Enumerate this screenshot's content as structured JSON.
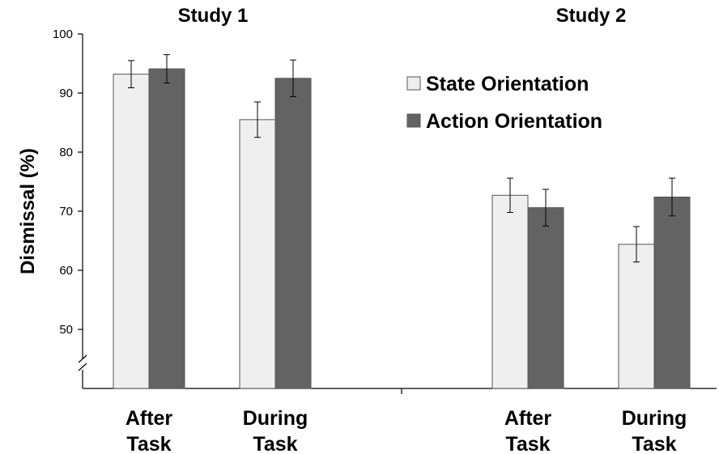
{
  "chart_data": {
    "type": "bar",
    "ylabel": "Dismissal (%)",
    "ylim": [
      40,
      100
    ],
    "yticks": [
      "50",
      "60",
      "70",
      "80",
      "90",
      "100"
    ],
    "axis_break": true,
    "grid": false,
    "legend_position": "top-right",
    "studies": [
      {
        "title": "Study 1",
        "categories": [
          [
            "After",
            "Task"
          ],
          [
            "During",
            "Task"
          ]
        ]
      },
      {
        "title": "Study 2",
        "categories": [
          [
            "After",
            "Task"
          ],
          [
            "During",
            "Task"
          ]
        ]
      }
    ],
    "series": [
      {
        "name": "State Orientation",
        "color": "#efefef",
        "values": [
          93.2,
          85.5,
          72.7,
          64.4
        ],
        "errors": [
          2.3,
          3.0,
          2.9,
          3.0
        ]
      },
      {
        "name": "Action Orientation",
        "color": "#636363",
        "values": [
          94.1,
          92.5,
          70.6,
          72.4
        ],
        "errors": [
          2.4,
          3.1,
          3.1,
          3.2
        ]
      }
    ]
  }
}
